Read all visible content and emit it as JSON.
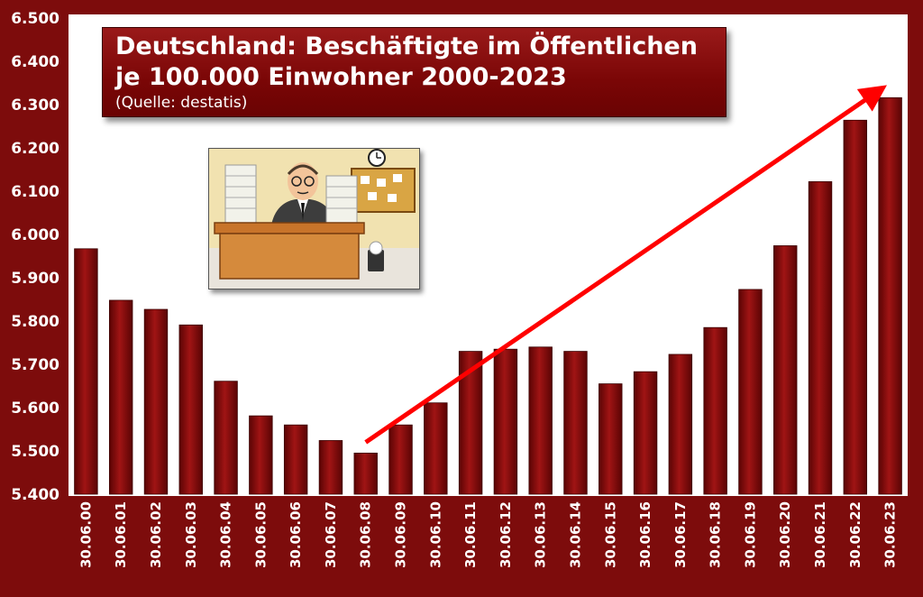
{
  "title": {
    "line1": "Deutschland: Beschäftigte im Öffentlichen",
    "line2": "je 100.000 Einwohner 2000-2023",
    "source": "(Quelle: destatis)"
  },
  "colors": {
    "bar": "#8b0a0a",
    "frame": "#7d0c0c",
    "arrow": "#ff0000"
  },
  "illustration": "office-worker-at-desk-with-paper-stacks",
  "chart_data": {
    "type": "bar",
    "categories": [
      "30.06.00",
      "30.06.01",
      "30.06.02",
      "30.06.03",
      "30.06.04",
      "30.06.05",
      "30.06.06",
      "30.06.07",
      "30.06.08",
      "30.06.09",
      "30.06.10",
      "30.06.11",
      "30.06.12",
      "30.06.13",
      "30.06.14",
      "30.06.15",
      "30.06.16",
      "30.06.17",
      "30.06.18",
      "30.06.19",
      "30.06.20",
      "30.06.21",
      "30.06.22",
      "30.06.23"
    ],
    "values": [
      5967,
      5848,
      5827,
      5791,
      5661,
      5581,
      5560,
      5524,
      5495,
      5560,
      5611,
      5730,
      5735,
      5740,
      5730,
      5655,
      5683,
      5723,
      5785,
      5873,
      5974,
      6122,
      6264,
      6316
    ],
    "ylim": [
      5400,
      6500
    ],
    "yticks": [
      "5.400",
      "5.500",
      "5.600",
      "5.700",
      "5.800",
      "5.900",
      "6.000",
      "6.100",
      "6.200",
      "6.300",
      "6.400",
      "6.500"
    ],
    "grid": false,
    "legend": "none",
    "annotation": {
      "type": "trend-arrow",
      "from": {
        "x": "30.06.08",
        "y": 5520
      },
      "to": {
        "x": "30.06.23",
        "y": 6340
      }
    }
  }
}
